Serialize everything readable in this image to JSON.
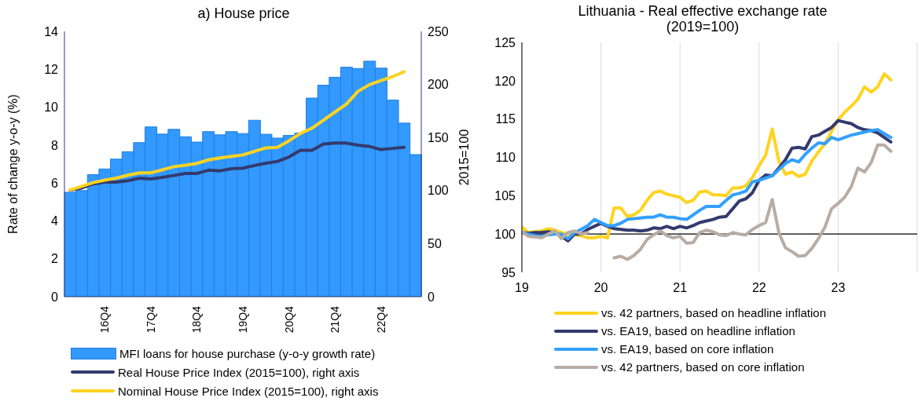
{
  "chart_data": [
    {
      "type": "bar",
      "title": "a) House price",
      "ylabel": "Rate of change y-o-y (%)",
      "categories": [
        null,
        null,
        null,
        "16Q4",
        null,
        null,
        null,
        "17Q4",
        null,
        null,
        null,
        "18Q4",
        null,
        null,
        null,
        "19Q4",
        null,
        null,
        null,
        "20Q4",
        null,
        null,
        null,
        "21Q4",
        null,
        null,
        null,
        "22Q4",
        null,
        null,
        null
      ],
      "series": [
        {
          "name": "MFI loans for house purchase (y-o-y growth rate)",
          "color": "#3399ff",
          "values": [
            5.51,
            5.6,
            6.44,
            6.74,
            7.26,
            7.65,
            8.13,
            8.96,
            8.58,
            8.83,
            8.44,
            8.16,
            8.71,
            8.54,
            8.71,
            8.61,
            9.31,
            8.57,
            8.37,
            8.51,
            8.63,
            10.48,
            11.16,
            11.58,
            12.11,
            12.04,
            12.43,
            12.06,
            10.38,
            9.16,
            7.5
          ]
        },
        {
          "name": "Real House Price Index (2015=100), right axis",
          "type": "line",
          "axis": "y2",
          "color": "#333a6e",
          "values": [
            100.3,
            102.5,
            106.4,
            108,
            108,
            109.2,
            111.7,
            110.9,
            112.5,
            114.2,
            116.1,
            116.1,
            119.2,
            118.6,
            120.6,
            121.1,
            123.6,
            125.8,
            127.5,
            131.6,
            138,
            138,
            143.8,
            144.7,
            144.7,
            142.7,
            141.6,
            138.6,
            139.7,
            140.8,
            null
          ]
        },
        {
          "name": "Nominal House Price Index (2015=100), right axis",
          "type": "line",
          "axis": "y2",
          "color": "#ffd320",
          "values": [
            100.6,
            104,
            107.5,
            109.8,
            111.7,
            114.5,
            116.7,
            116.7,
            119.5,
            122.5,
            123.9,
            125.6,
            128.9,
            130.8,
            132.2,
            133.6,
            136.9,
            140.2,
            140.8,
            146.9,
            153.8,
            158.8,
            166.3,
            174,
            181.5,
            193.5,
            199.8,
            203.7,
            207.3,
            212,
            null
          ]
        }
      ],
      "ylim": [
        0,
        14
      ],
      "yticks": [
        0,
        2,
        4,
        6,
        8,
        10,
        12,
        14
      ],
      "y2lim": [
        0,
        250
      ],
      "y2ticks": [
        0,
        50,
        100,
        150,
        200,
        250
      ],
      "legend": "bottom"
    },
    {
      "type": "line",
      "title": "Lithuania - Real effective exchange rate",
      "subtitle": "(2019=100)",
      "ylabel": "2015=100",
      "x": [
        "2019-01",
        "2019-02",
        "2019-03",
        "2019-04",
        "2019-05",
        "2019-06",
        "2019-07",
        "2019-08",
        "2019-09",
        "2019-10",
        "2019-11",
        "2019-12",
        "2020-01",
        "2020-02",
        "2020-03",
        "2020-04",
        "2020-05",
        "2020-06",
        "2020-07",
        "2020-08",
        "2020-09",
        "2020-10",
        "2020-11",
        "2020-12",
        "2021-01",
        "2021-02",
        "2021-03",
        "2021-04",
        "2021-05",
        "2021-06",
        "2021-07",
        "2021-08",
        "2021-09",
        "2021-10",
        "2021-11",
        "2021-12",
        "2022-01",
        "2022-02",
        "2022-03",
        "2022-04",
        "2022-05",
        "2022-06",
        "2022-07",
        "2022-08",
        "2022-09",
        "2022-10",
        "2022-11",
        "2022-12",
        "2023-01",
        "2023-02",
        "2023-03",
        "2023-04",
        "2023-05",
        "2023-06",
        "2023-07",
        "2023-08",
        "2023-09"
      ],
      "series": [
        {
          "name": "vs. 42 partners, based on headline inflation",
          "color": "#ffd320",
          "values": [
            100.9,
            100.2,
            100.3,
            100.4,
            100.7,
            100.5,
            100.2,
            100.0,
            99.9,
            99.8,
            99.5,
            99.5,
            99.7,
            99.5,
            103.4,
            103.4,
            102.3,
            102.5,
            103.1,
            104.4,
            105.4,
            105.6,
            105.2,
            105.0,
            104.8,
            104.1,
            104.4,
            105.5,
            105.6,
            105.1,
            105.1,
            105.0,
            106.0,
            106.0,
            106.3,
            107.4,
            108.9,
            110.3,
            113.7,
            109.5,
            107.8,
            108.1,
            107.5,
            107.8,
            109.5,
            110.7,
            111.8,
            113.4,
            114.9,
            115.9,
            116.7,
            117.6,
            119.2,
            118.5,
            119.2,
            120.9,
            120.1
          ]
        },
        {
          "name": "vs. EA19, based on headline inflation",
          "color": "#333a6e",
          "values": [
            100.2,
            100.1,
            100.2,
            100.2,
            100.3,
            100.2,
            99.7,
            99.1,
            100.0,
            100.0,
            100.6,
            101.0,
            101.4,
            101.0,
            100.7,
            100.6,
            100.5,
            100.5,
            100.4,
            100.5,
            100.8,
            100.7,
            101.0,
            100.7,
            101.0,
            100.8,
            101.1,
            101.5,
            101.7,
            101.9,
            102.2,
            102.3,
            103.3,
            104.3,
            104.6,
            105.4,
            107.0,
            107.7,
            107.6,
            108.6,
            109.7,
            111.2,
            111.3,
            111.1,
            112.7,
            112.9,
            113.4,
            113.9,
            114.8,
            114.6,
            114.4,
            113.9,
            113.6,
            113.5,
            113.2,
            112.6,
            112.0
          ]
        },
        {
          "name": "vs. EA19, based on core inflation",
          "color": "#33a0ff",
          "values": [
            100.2,
            100.0,
            99.8,
            99.7,
            99.9,
            100.0,
            100.0,
            99.4,
            100.2,
            100.6,
            101.1,
            101.9,
            101.5,
            101.1,
            101.1,
            101.4,
            101.9,
            102.0,
            102.1,
            102.2,
            102.2,
            102.5,
            102.2,
            102.2,
            102.0,
            101.9,
            102.5,
            103.1,
            103.6,
            103.6,
            103.6,
            104.4,
            105.1,
            105.3,
            105.6,
            106.8,
            107.0,
            107.3,
            107.6,
            108.4,
            109.2,
            109.7,
            109.4,
            110.4,
            111.2,
            111.9,
            111.8,
            112.6,
            112.3,
            112.6,
            112.9,
            113.1,
            113.3,
            113.5,
            113.6,
            113.1,
            112.6
          ]
        },
        {
          "name": "vs. 42 partners, based on core inflation",
          "color": "#b8aca4",
          "values": [
            100.3,
            99.7,
            99.6,
            99.5,
            100.0,
            100.4,
            99.4,
            100.2,
            100.4,
            100.0,
            100.2,
            null,
            null,
            null,
            96.9,
            97.1,
            96.7,
            97.2,
            98.0,
            99.3,
            99.9,
            100.4,
            99.8,
            99.5,
            99.7,
            98.8,
            98.9,
            100.2,
            100.5,
            100.3,
            99.9,
            99.8,
            100.2,
            100.0,
            99.9,
            100.6,
            101.1,
            101.5,
            104.5,
            100.2,
            98.2,
            97.7,
            97.1,
            97.2,
            98.1,
            99.4,
            100.9,
            103.3,
            104.0,
            104.8,
            106.2,
            108.6,
            108.1,
            109.3,
            111.6,
            111.6,
            110.8
          ]
        }
      ],
      "xlim": [
        "2019-01",
        "2024-01"
      ],
      "xticks": [
        {
          "value": "2019-01",
          "label": "19"
        },
        {
          "value": "2020-01",
          "label": "20"
        },
        {
          "value": "2021-01",
          "label": "21"
        },
        {
          "value": "2022-01",
          "label": "22"
        },
        {
          "value": "2023-01",
          "label": "23"
        }
      ],
      "ylim": [
        95,
        125
      ],
      "yticks": [
        95,
        100,
        105,
        110,
        115,
        120,
        125
      ],
      "ref_lines": [
        {
          "axis": "y",
          "value": 100,
          "color": "#000000"
        }
      ],
      "grid": "x",
      "legend": "bottom"
    }
  ]
}
